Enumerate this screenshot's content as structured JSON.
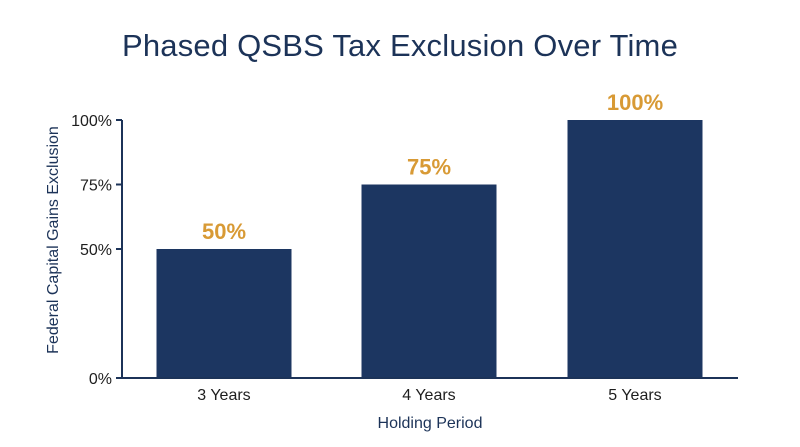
{
  "colors": {
    "bar": "#1c3661",
    "data_label": "#d89a35",
    "title": "#1c3358",
    "axis": "#1c3358"
  },
  "chart_data": {
    "type": "bar",
    "title": "Phased QSBS Tax Exclusion Over Time",
    "xlabel": "Holding Period",
    "ylabel": "Federal Capital Gains Exclusion",
    "categories": [
      "3 Years",
      "4 Years",
      "5 Years"
    ],
    "values": [
      50,
      75,
      100
    ],
    "data_labels": [
      "50%",
      "75%",
      "100%"
    ],
    "ylim": [
      0,
      100
    ],
    "yticks": [
      0,
      50,
      75,
      100
    ],
    "ytick_labels": [
      "0%",
      "50%",
      "75%",
      "100%"
    ],
    "grid": false,
    "legend": "none"
  }
}
